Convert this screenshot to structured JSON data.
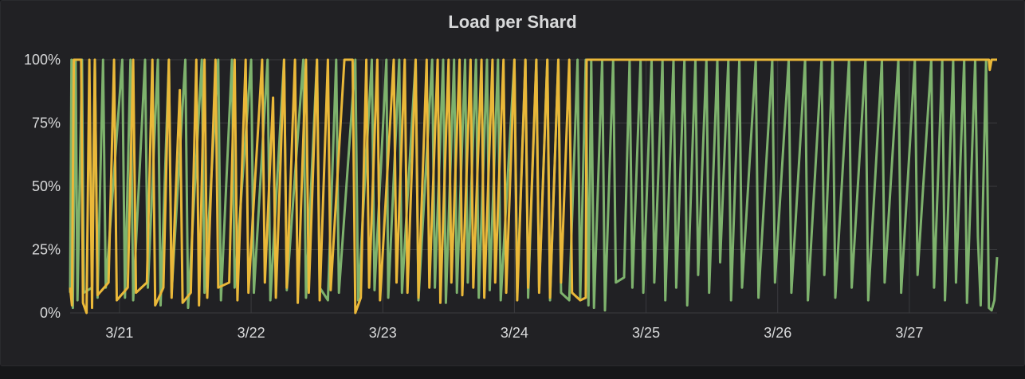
{
  "panel": {
    "title": "Load per Shard"
  },
  "colors": {
    "background": "#212124",
    "grid": "#3a3b3e",
    "text": "#d8d9da"
  },
  "chart_data": {
    "type": "line",
    "title": "Load per Shard",
    "xlabel": "",
    "ylabel": "",
    "x_range": [
      "2019-03-20T15:00",
      "2019-03-27T16:00"
    ],
    "ylim": [
      0,
      100
    ],
    "y_ticks": [
      {
        "value": 0,
        "label": "0%"
      },
      {
        "value": 25,
        "label": "25%"
      },
      {
        "value": 50,
        "label": "50%"
      },
      {
        "value": 75,
        "label": "75%"
      },
      {
        "value": 100,
        "label": "100%"
      }
    ],
    "x_ticks": [
      {
        "value": "2019-03-21T00:00",
        "label": "3/21"
      },
      {
        "value": "2019-03-22T00:00",
        "label": "3/22"
      },
      {
        "value": "2019-03-23T00:00",
        "label": "3/23"
      },
      {
        "value": "2019-03-24T00:00",
        "label": "3/24"
      },
      {
        "value": "2019-03-25T00:00",
        "label": "3/25"
      },
      {
        "value": "2019-03-26T00:00",
        "label": "3/26"
      },
      {
        "value": "2019-03-27T00:00",
        "label": "3/27"
      }
    ],
    "grid": true,
    "legend": "none",
    "series": [
      {
        "color": "#7eb26d",
        "points": [
          [
            "2019-03-20T15:00",
            8
          ],
          [
            "2019-03-20T15:15",
            100
          ],
          [
            "2019-03-20T15:30",
            2
          ],
          [
            "2019-03-20T16:00",
            100
          ],
          [
            "2019-03-20T16:20",
            5
          ],
          [
            "2019-03-20T17:10",
            100
          ],
          [
            "2019-03-20T17:30",
            8
          ],
          [
            "2019-03-20T19:00",
            10
          ],
          [
            "2019-03-20T19:30",
            100
          ],
          [
            "2019-03-20T20:00",
            6
          ],
          [
            "2019-03-20T21:00",
            100
          ],
          [
            "2019-03-20T21:30",
            10
          ],
          [
            "2019-03-21T00:30",
            100
          ],
          [
            "2019-03-21T01:00",
            6
          ],
          [
            "2019-03-21T02:00",
            100
          ],
          [
            "2019-03-21T02:30",
            5
          ],
          [
            "2019-03-21T04:40",
            100
          ],
          [
            "2019-03-21T05:10",
            10
          ],
          [
            "2019-03-21T07:00",
            100
          ],
          [
            "2019-03-21T07:30",
            3
          ],
          [
            "2019-03-21T09:00",
            100
          ],
          [
            "2019-03-21T09:30",
            8
          ],
          [
            "2019-03-21T12:00",
            100
          ],
          [
            "2019-03-21T12:30",
            2
          ],
          [
            "2019-03-21T15:00",
            100
          ],
          [
            "2019-03-21T15:30",
            8
          ],
          [
            "2019-03-21T18:00",
            100
          ],
          [
            "2019-03-21T18:30",
            5
          ],
          [
            "2019-03-21T20:30",
            100
          ],
          [
            "2019-03-21T21:00",
            10
          ],
          [
            "2019-03-22T00:00",
            100
          ],
          [
            "2019-03-22T00:30",
            8
          ],
          [
            "2019-03-22T03:00",
            100
          ],
          [
            "2019-03-22T03:30",
            5
          ],
          [
            "2019-03-22T06:00",
            100
          ],
          [
            "2019-03-22T06:30",
            9
          ],
          [
            "2019-03-22T09:30",
            100
          ],
          [
            "2019-03-22T10:00",
            6
          ],
          [
            "2019-03-22T12:00",
            100
          ],
          [
            "2019-03-22T12:30",
            10
          ],
          [
            "2019-03-22T14:00",
            5
          ],
          [
            "2019-03-22T15:30",
            100
          ],
          [
            "2019-03-22T16:00",
            8
          ],
          [
            "2019-03-22T19:00",
            100
          ],
          [
            "2019-03-22T19:30",
            5
          ],
          [
            "2019-03-22T22:00",
            100
          ],
          [
            "2019-03-22T22:30",
            9
          ],
          [
            "2019-03-23T00:40",
            100
          ],
          [
            "2019-03-23T01:00",
            6
          ],
          [
            "2019-03-23T03:00",
            100
          ],
          [
            "2019-03-23T03:30",
            8
          ],
          [
            "2019-03-23T06:00",
            100
          ],
          [
            "2019-03-23T06:30",
            5
          ],
          [
            "2019-03-23T09:00",
            100
          ],
          [
            "2019-03-23T09:30",
            10
          ],
          [
            "2019-03-23T11:00",
            100
          ],
          [
            "2019-03-23T11:30",
            4
          ],
          [
            "2019-03-23T13:00",
            100
          ],
          [
            "2019-03-23T13:30",
            8
          ],
          [
            "2019-03-23T15:00",
            100
          ],
          [
            "2019-03-23T15:30",
            12
          ],
          [
            "2019-03-23T17:00",
            100
          ],
          [
            "2019-03-23T17:30",
            6
          ],
          [
            "2019-03-23T19:00",
            100
          ],
          [
            "2019-03-23T19:30",
            9
          ],
          [
            "2019-03-23T21:00",
            100
          ],
          [
            "2019-03-23T21:30",
            5
          ],
          [
            "2019-03-24T00:00",
            100
          ],
          [
            "2019-03-24T00:30",
            8
          ],
          [
            "2019-03-24T02:00",
            100
          ],
          [
            "2019-03-24T02:30",
            6
          ],
          [
            "2019-03-24T04:00",
            100
          ],
          [
            "2019-03-24T04:30",
            10
          ],
          [
            "2019-03-24T06:00",
            100
          ],
          [
            "2019-03-24T06:30",
            5
          ],
          [
            "2019-03-24T08:00",
            100
          ],
          [
            "2019-03-24T08:30",
            8
          ],
          [
            "2019-03-24T10:00",
            5
          ],
          [
            "2019-03-24T11:30",
            100
          ],
          [
            "2019-03-24T12:00",
            6
          ],
          [
            "2019-03-24T13:00",
            100
          ],
          [
            "2019-03-24T13:30",
            3
          ],
          [
            "2019-03-24T14:00",
            100
          ],
          [
            "2019-03-24T14:30",
            2
          ],
          [
            "2019-03-24T16:00",
            100
          ],
          [
            "2019-03-24T16:30",
            1
          ],
          [
            "2019-03-24T18:00",
            100
          ],
          [
            "2019-03-24T18:30",
            12
          ],
          [
            "2019-03-24T20:00",
            14
          ],
          [
            "2019-03-24T21:00",
            100
          ],
          [
            "2019-03-24T21:30",
            10
          ],
          [
            "2019-03-24T23:00",
            100
          ],
          [
            "2019-03-24T23:30",
            8
          ],
          [
            "2019-03-25T01:00",
            100
          ],
          [
            "2019-03-25T01:30",
            12
          ],
          [
            "2019-03-25T03:00",
            100
          ],
          [
            "2019-03-25T03:30",
            5
          ],
          [
            "2019-03-25T05:00",
            100
          ],
          [
            "2019-03-25T05:30",
            10
          ],
          [
            "2019-03-25T07:00",
            100
          ],
          [
            "2019-03-25T07:30",
            3
          ],
          [
            "2019-03-25T09:00",
            100
          ],
          [
            "2019-03-25T09:30",
            15
          ],
          [
            "2019-03-25T11:00",
            100
          ],
          [
            "2019-03-25T11:30",
            8
          ],
          [
            "2019-03-25T13:00",
            100
          ],
          [
            "2019-03-25T13:30",
            20
          ],
          [
            "2019-03-25T15:00",
            100
          ],
          [
            "2019-03-25T15:30",
            5
          ],
          [
            "2019-03-25T17:00",
            100
          ],
          [
            "2019-03-25T17:30",
            10
          ],
          [
            "2019-03-25T20:00",
            100
          ],
          [
            "2019-03-25T20:30",
            6
          ],
          [
            "2019-03-25T23:00",
            100
          ],
          [
            "2019-03-25T23:30",
            12
          ],
          [
            "2019-03-26T02:00",
            100
          ],
          [
            "2019-03-26T02:30",
            8
          ],
          [
            "2019-03-26T05:00",
            100
          ],
          [
            "2019-03-26T05:30",
            5
          ],
          [
            "2019-03-26T08:00",
            100
          ],
          [
            "2019-03-26T08:30",
            15
          ],
          [
            "2019-03-26T10:00",
            100
          ],
          [
            "2019-03-26T10:30",
            6
          ],
          [
            "2019-03-26T13:00",
            100
          ],
          [
            "2019-03-26T13:30",
            10
          ],
          [
            "2019-03-26T16:00",
            100
          ],
          [
            "2019-03-26T16:30",
            5
          ],
          [
            "2019-03-26T19:00",
            100
          ],
          [
            "2019-03-26T19:30",
            12
          ],
          [
            "2019-03-26T22:00",
            100
          ],
          [
            "2019-03-26T22:30",
            8
          ],
          [
            "2019-03-27T01:00",
            100
          ],
          [
            "2019-03-27T01:30",
            15
          ],
          [
            "2019-03-27T04:00",
            100
          ],
          [
            "2019-03-27T04:30",
            10
          ],
          [
            "2019-03-27T06:00",
            100
          ],
          [
            "2019-03-27T06:30",
            5
          ],
          [
            "2019-03-27T08:00",
            100
          ],
          [
            "2019-03-27T08:30",
            12
          ],
          [
            "2019-03-27T10:00",
            100
          ],
          [
            "2019-03-27T10:30",
            4
          ],
          [
            "2019-03-27T12:00",
            100
          ],
          [
            "2019-03-27T12:30",
            30
          ],
          [
            "2019-03-27T13:00",
            3
          ],
          [
            "2019-03-27T14:00",
            100
          ],
          [
            "2019-03-27T14:30",
            2
          ],
          [
            "2019-03-27T15:00",
            1
          ],
          [
            "2019-03-27T15:30",
            5
          ],
          [
            "2019-03-27T16:00",
            22
          ]
        ]
      },
      {
        "color": "#eab839",
        "points": [
          [
            "2019-03-20T15:00",
            10
          ],
          [
            "2019-03-20T15:20",
            3
          ],
          [
            "2019-03-20T15:40",
            100
          ],
          [
            "2019-03-20T17:00",
            100
          ],
          [
            "2019-03-20T17:20",
            4
          ],
          [
            "2019-03-20T18:00",
            0
          ],
          [
            "2019-03-20T18:30",
            100
          ],
          [
            "2019-03-20T19:00",
            2
          ],
          [
            "2019-03-20T19:30",
            100
          ],
          [
            "2019-03-20T20:00",
            7
          ],
          [
            "2019-03-20T22:00",
            12
          ],
          [
            "2019-03-20T23:00",
            100
          ],
          [
            "2019-03-20T23:30",
            5
          ],
          [
            "2019-03-21T01:30",
            10
          ],
          [
            "2019-03-21T02:30",
            100
          ],
          [
            "2019-03-21T03:00",
            8
          ],
          [
            "2019-03-21T05:00",
            12
          ],
          [
            "2019-03-21T06:00",
            100
          ],
          [
            "2019-03-21T06:30",
            3
          ],
          [
            "2019-03-21T08:00",
            10
          ],
          [
            "2019-03-21T09:00",
            100
          ],
          [
            "2019-03-21T09:30",
            6
          ],
          [
            "2019-03-21T11:00",
            88
          ],
          [
            "2019-03-21T11:30",
            4
          ],
          [
            "2019-03-21T13:00",
            8
          ],
          [
            "2019-03-21T14:00",
            100
          ],
          [
            "2019-03-21T14:30",
            3
          ],
          [
            "2019-03-21T15:30",
            100
          ],
          [
            "2019-03-21T16:00",
            6
          ],
          [
            "2019-03-21T17:30",
            100
          ],
          [
            "2019-03-21T18:00",
            10
          ],
          [
            "2019-03-21T20:00",
            12
          ],
          [
            "2019-03-21T21:00",
            100
          ],
          [
            "2019-03-21T21:30",
            5
          ],
          [
            "2019-03-21T23:00",
            100
          ],
          [
            "2019-03-21T23:30",
            8
          ],
          [
            "2019-03-22T02:00",
            100
          ],
          [
            "2019-03-22T02:30",
            12
          ],
          [
            "2019-03-22T04:00",
            85
          ],
          [
            "2019-03-22T04:30",
            6
          ],
          [
            "2019-03-22T06:00",
            100
          ],
          [
            "2019-03-22T06:30",
            10
          ],
          [
            "2019-03-22T08:00",
            100
          ],
          [
            "2019-03-22T08:30",
            4
          ],
          [
            "2019-03-22T10:00",
            100
          ],
          [
            "2019-03-22T10:30",
            8
          ],
          [
            "2019-03-22T12:00",
            100
          ],
          [
            "2019-03-22T12:30",
            5
          ],
          [
            "2019-03-22T14:00",
            100
          ],
          [
            "2019-03-22T14:30",
            9
          ],
          [
            "2019-03-22T17:00",
            100
          ],
          [
            "2019-03-22T18:30",
            100
          ],
          [
            "2019-03-22T19:00",
            0
          ],
          [
            "2019-03-22T20:00",
            6
          ],
          [
            "2019-03-22T21:00",
            100
          ],
          [
            "2019-03-22T21:30",
            10
          ],
          [
            "2019-03-22T23:00",
            100
          ],
          [
            "2019-03-22T23:30",
            5
          ],
          [
            "2019-03-23T02:00",
            100
          ],
          [
            "2019-03-23T02:30",
            12
          ],
          [
            "2019-03-23T04:00",
            100
          ],
          [
            "2019-03-23T04:30",
            8
          ],
          [
            "2019-03-23T06:00",
            100
          ],
          [
            "2019-03-23T06:30",
            6
          ],
          [
            "2019-03-23T08:00",
            100
          ],
          [
            "2019-03-23T08:30",
            10
          ],
          [
            "2019-03-23T10:00",
            100
          ],
          [
            "2019-03-23T10:30",
            4
          ],
          [
            "2019-03-23T12:00",
            100
          ],
          [
            "2019-03-23T12:30",
            12
          ],
          [
            "2019-03-23T14:00",
            100
          ],
          [
            "2019-03-23T14:30",
            7
          ],
          [
            "2019-03-23T16:00",
            100
          ],
          [
            "2019-03-23T16:30",
            10
          ],
          [
            "2019-03-23T18:00",
            100
          ],
          [
            "2019-03-23T18:30",
            6
          ],
          [
            "2019-03-23T20:00",
            100
          ],
          [
            "2019-03-23T20:30",
            12
          ],
          [
            "2019-03-23T22:00",
            100
          ],
          [
            "2019-03-23T22:30",
            8
          ],
          [
            "2019-03-24T00:00",
            100
          ],
          [
            "2019-03-24T00:30",
            5
          ],
          [
            "2019-03-24T02:00",
            100
          ],
          [
            "2019-03-24T02:30",
            10
          ],
          [
            "2019-03-24T04:00",
            100
          ],
          [
            "2019-03-24T04:30",
            8
          ],
          [
            "2019-03-24T06:00",
            100
          ],
          [
            "2019-03-24T06:30",
            6
          ],
          [
            "2019-03-24T08:00",
            100
          ],
          [
            "2019-03-24T08:30",
            12
          ],
          [
            "2019-03-24T10:00",
            100
          ],
          [
            "2019-03-24T10:30",
            8
          ],
          [
            "2019-03-24T12:00",
            5
          ],
          [
            "2019-03-24T13:00",
            6
          ],
          [
            "2019-03-24T13:10",
            100
          ],
          [
            "2019-03-27T14:30",
            100
          ],
          [
            "2019-03-27T14:40",
            96
          ],
          [
            "2019-03-27T15:00",
            100
          ],
          [
            "2019-03-27T16:00",
            100
          ]
        ]
      }
    ]
  }
}
